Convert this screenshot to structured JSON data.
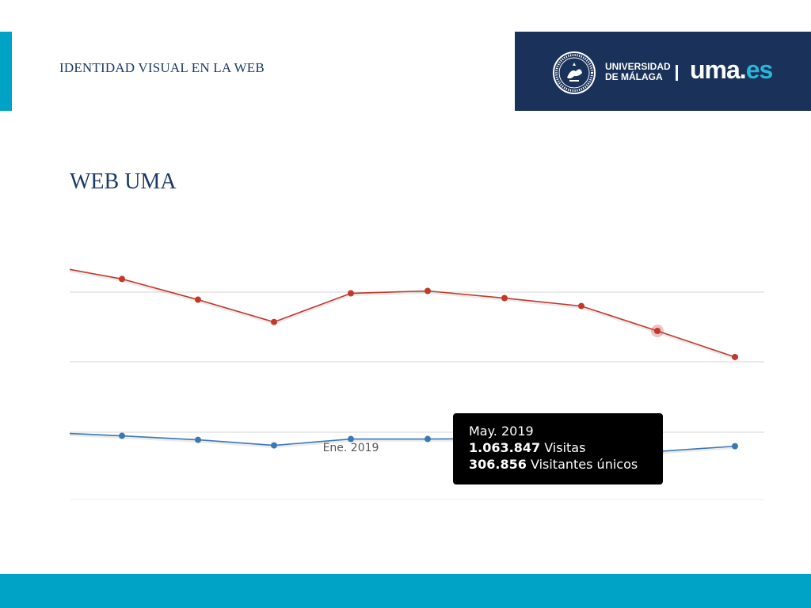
{
  "header": {
    "title": "IDENTIDAD VISUAL EN LA WEB",
    "logo": {
      "university_line1": "UNIVERSIDAD",
      "university_line2": "DE MÁLAGA",
      "brand_main": "uma",
      "brand_dot": ".",
      "brand_tld": "es"
    }
  },
  "page_title": "WEB UMA",
  "chart_data": {
    "type": "line",
    "categories": [
      "",
      "",
      "",
      "",
      "Ene. 2019",
      "",
      "",
      "",
      "May. 2019",
      ""
    ],
    "x_tick_labels": [
      "Ene. 2019"
    ],
    "grid": true,
    "legend": "none",
    "series": [
      {
        "name": "Visitas",
        "color": "#c0392b",
        "values": [
          1450000,
          1390000,
          1260000,
          1120000,
          1300000,
          1315000,
          1270000,
          1220000,
          1063847,
          900000
        ]
      },
      {
        "name": "Visitantes únicos",
        "color": "#3a78b5",
        "values": [
          420000,
          405000,
          380000,
          345000,
          385000,
          385000,
          388000,
          378000,
          306856,
          340000
        ]
      }
    ]
  },
  "tooltip": {
    "title": "May. 2019",
    "visits_value": "1.063.847",
    "visits_label": "Visitas",
    "unique_value": "306.856",
    "unique_label": "Visitantes únicos"
  },
  "colors": {
    "accent": "#00a2c5",
    "navy": "#1a3159",
    "title_text": "#1b3a64",
    "tld_cyan": "#2bb5d8"
  }
}
